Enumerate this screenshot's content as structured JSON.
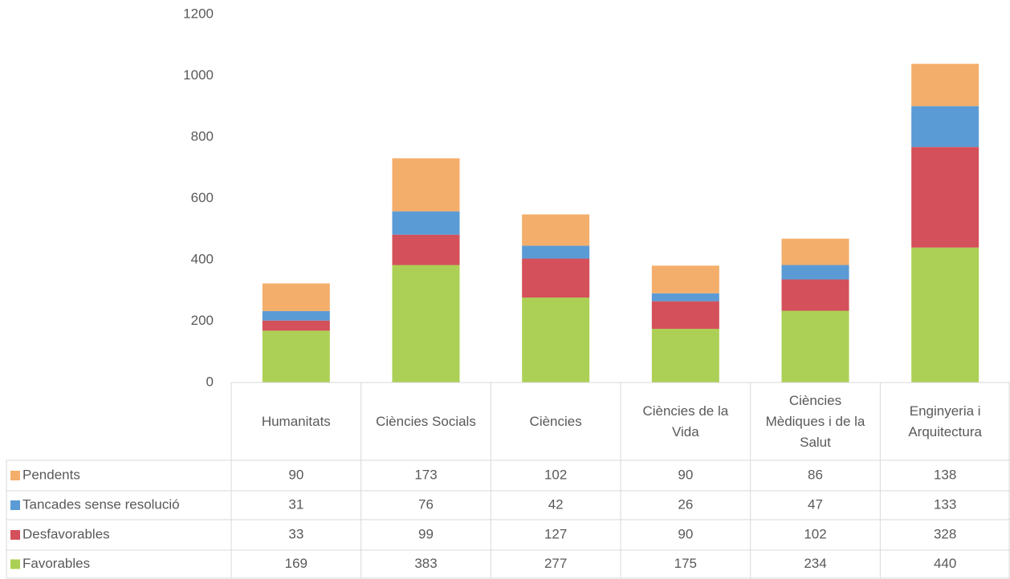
{
  "chart_data": {
    "type": "stacked_bar",
    "categories": [
      "Humanitats",
      "Ciències Socials",
      "Ciències",
      "Ciències de la Vida",
      "Ciències Mèdiques i de la Salut",
      "Enginyeria i Arquitectura"
    ],
    "series": [
      {
        "name": "Pendents",
        "color": "#f4ae6b",
        "values": [
          90,
          173,
          102,
          90,
          86,
          138
        ]
      },
      {
        "name": "Tancades sense resolució",
        "color": "#5b9bd5",
        "values": [
          31,
          76,
          42,
          26,
          47,
          133
        ]
      },
      {
        "name": "Desfavorables",
        "color": "#d4505a",
        "values": [
          33,
          99,
          127,
          90,
          102,
          328
        ]
      },
      {
        "name": "Favorables",
        "color": "#acd055",
        "values": [
          169,
          383,
          277,
          175,
          234,
          440
        ]
      }
    ],
    "ylim": [
      0,
      1200
    ],
    "yticks": [
      0,
      200,
      400,
      600,
      800,
      1000,
      1200
    ],
    "grid": false,
    "legend": "table"
  }
}
